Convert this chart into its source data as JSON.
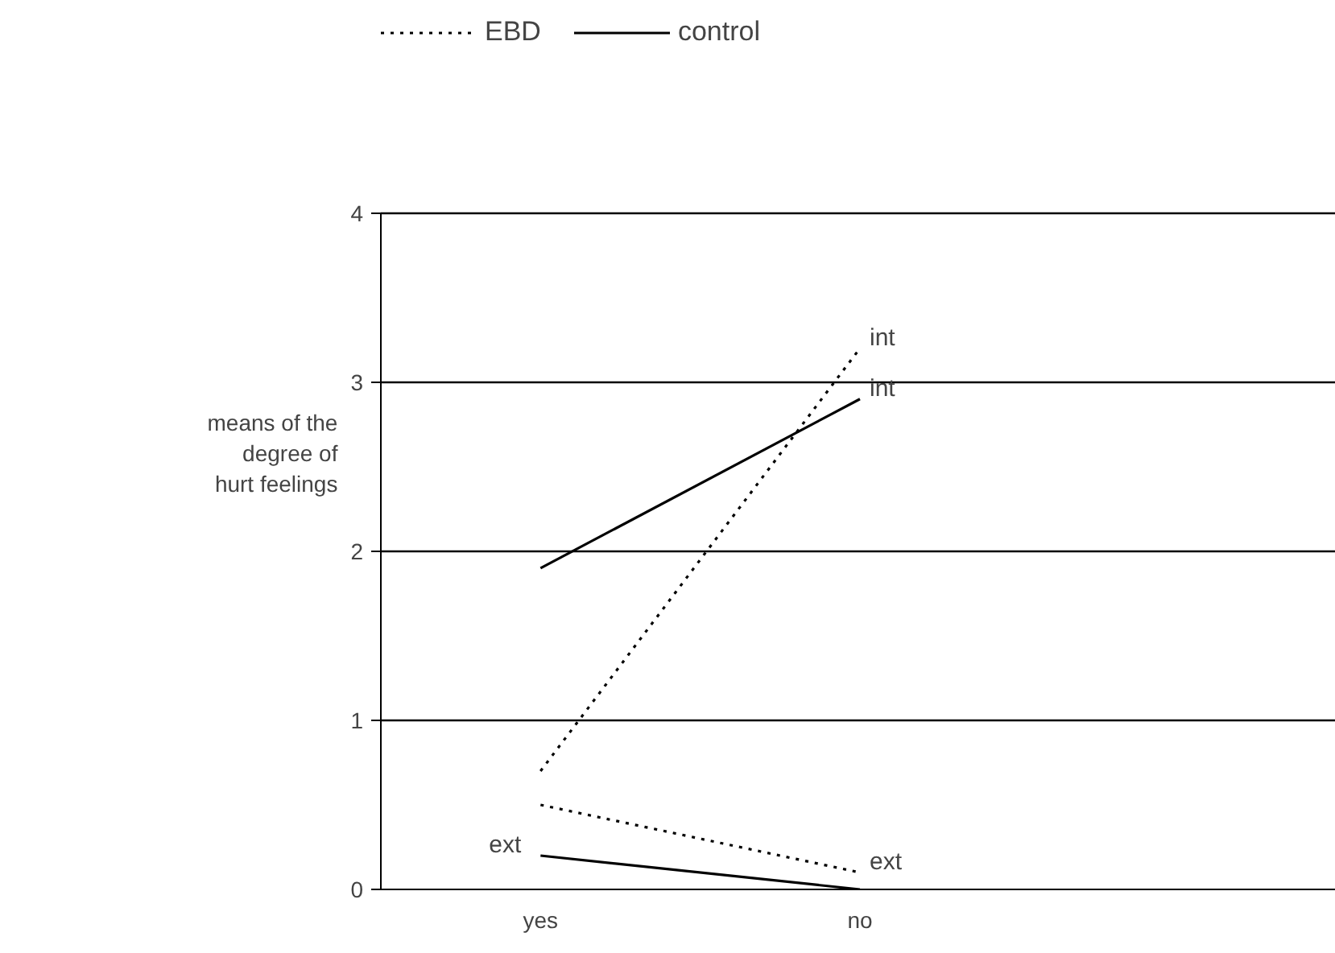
{
  "chart_data": {
    "type": "line",
    "categories": [
      "yes",
      "no"
    ],
    "ylabel": "means of the degree of hurt feelings",
    "ylim": [
      0,
      4
    ],
    "yticks": [
      0,
      1,
      2,
      3,
      4
    ],
    "grid": "y",
    "legend": "top left",
    "marker": "none",
    "series": [
      {
        "name": "EBD",
        "color": "#000000",
        "line_style": "dotted",
        "values": [
          0.7,
          3.2
        ]
      },
      {
        "color": "#000000",
        "line_style": "dotted",
        "values": [
          0.5,
          0.1
        ]
      },
      {
        "name": "control",
        "color": "#000000",
        "line_style": "solid",
        "values": [
          1.9,
          2.9
        ]
      },
      {
        "color": "#000000",
        "line_style": "solid",
        "values": [
          0.2,
          0.0
        ]
      }
    ],
    "annotations": [
      {
        "text": "int",
        "x": "no",
        "y": 3.2
      },
      {
        "text": "int",
        "x": "no",
        "y": 2.9
      },
      {
        "text": "ext",
        "x": "yes",
        "y": 0.2
      },
      {
        "text": "ext",
        "x": "no",
        "y": 0.1
      }
    ]
  }
}
